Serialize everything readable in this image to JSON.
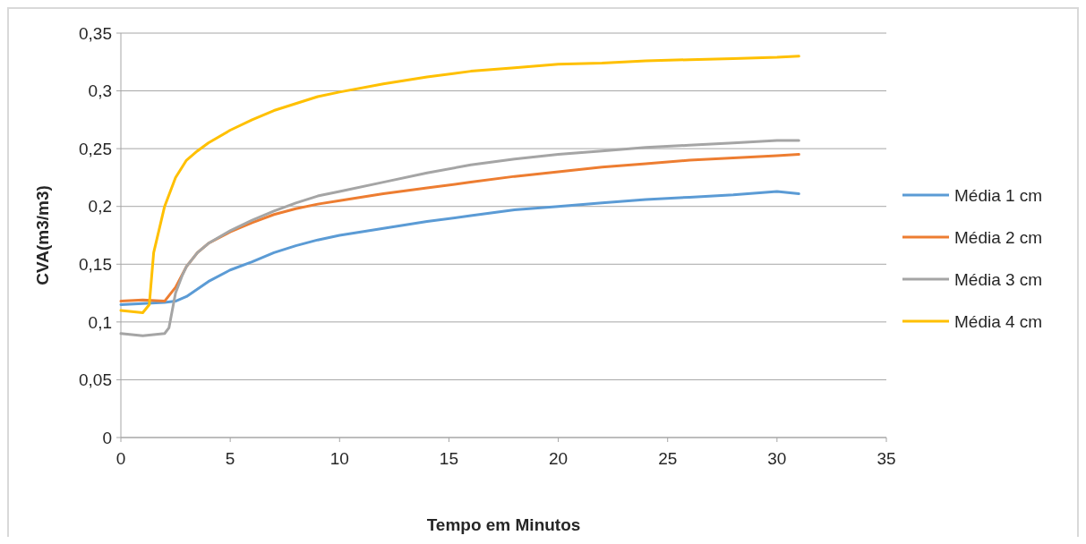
{
  "chart_data": {
    "type": "line",
    "xlabel": "Tempo em Minutos",
    "ylabel": "CVA(m3/m3)",
    "xlim": [
      0,
      35
    ],
    "xticks": [
      0,
      5,
      10,
      15,
      20,
      25,
      30,
      35
    ],
    "ylim": [
      0,
      0.35
    ],
    "yticks": [
      0,
      {
        "value": 0.05,
        "label": "0,05"
      },
      {
        "value": 0.1,
        "label": "0,1"
      },
      {
        "value": 0.15,
        "label": "0,15"
      },
      {
        "value": 0.2,
        "label": "0,2"
      },
      {
        "value": 0.25,
        "label": "0,25"
      },
      {
        "value": 0.3,
        "label": "0,3"
      },
      {
        "value": 0.35,
        "label": "0,35"
      }
    ],
    "grid": "y",
    "legend": "right",
    "series": [
      {
        "name": "Média 1 cm",
        "color": "#5b9bd5",
        "x": [
          0,
          1,
          2,
          2.5,
          3,
          4,
          5,
          6,
          7,
          8,
          9,
          10,
          12,
          14,
          16,
          18,
          20,
          22,
          24,
          26,
          28,
          30,
          31
        ],
        "values": [
          0.115,
          0.116,
          0.117,
          0.118,
          0.122,
          0.135,
          0.145,
          0.152,
          0.16,
          0.166,
          0.171,
          0.175,
          0.181,
          0.187,
          0.192,
          0.197,
          0.2,
          0.203,
          0.206,
          0.208,
          0.21,
          0.213,
          0.211
        ]
      },
      {
        "name": "Média 2 cm",
        "color": "#ed7d31",
        "x": [
          0,
          1,
          2,
          2.5,
          3,
          3.5,
          4,
          5,
          6,
          7,
          8,
          9,
          10,
          12,
          14,
          16,
          18,
          20,
          22,
          24,
          26,
          28,
          30,
          31
        ],
        "values": [
          0.118,
          0.119,
          0.118,
          0.13,
          0.148,
          0.16,
          0.168,
          0.178,
          0.186,
          0.193,
          0.198,
          0.202,
          0.205,
          0.211,
          0.216,
          0.221,
          0.226,
          0.23,
          0.234,
          0.237,
          0.24,
          0.242,
          0.244,
          0.245
        ]
      },
      {
        "name": "Média 3 cm",
        "color": "#a5a5a5",
        "x": [
          0,
          1,
          2,
          2.2,
          2.5,
          2.8,
          3,
          3.5,
          4,
          5,
          6,
          7,
          8,
          9,
          10,
          12,
          14,
          16,
          18,
          20,
          22,
          24,
          26,
          28,
          30,
          31
        ],
        "values": [
          0.09,
          0.088,
          0.09,
          0.095,
          0.125,
          0.14,
          0.148,
          0.16,
          0.168,
          0.179,
          0.188,
          0.196,
          0.203,
          0.209,
          0.213,
          0.221,
          0.229,
          0.236,
          0.241,
          0.245,
          0.248,
          0.251,
          0.253,
          0.255,
          0.257,
          0.257
        ]
      },
      {
        "name": "Média 4 cm",
        "color": "#ffc000",
        "x": [
          0,
          1,
          1.3,
          1.5,
          2,
          2.5,
          3,
          3.5,
          4,
          5,
          6,
          7,
          8,
          9,
          10,
          12,
          14,
          16,
          18,
          20,
          22,
          24,
          26,
          28,
          30,
          31
        ],
        "values": [
          0.11,
          0.108,
          0.115,
          0.16,
          0.2,
          0.225,
          0.24,
          0.248,
          0.255,
          0.266,
          0.275,
          0.283,
          0.289,
          0.295,
          0.299,
          0.306,
          0.312,
          0.317,
          0.32,
          0.323,
          0.324,
          0.326,
          0.327,
          0.328,
          0.329,
          0.33
        ]
      }
    ]
  }
}
